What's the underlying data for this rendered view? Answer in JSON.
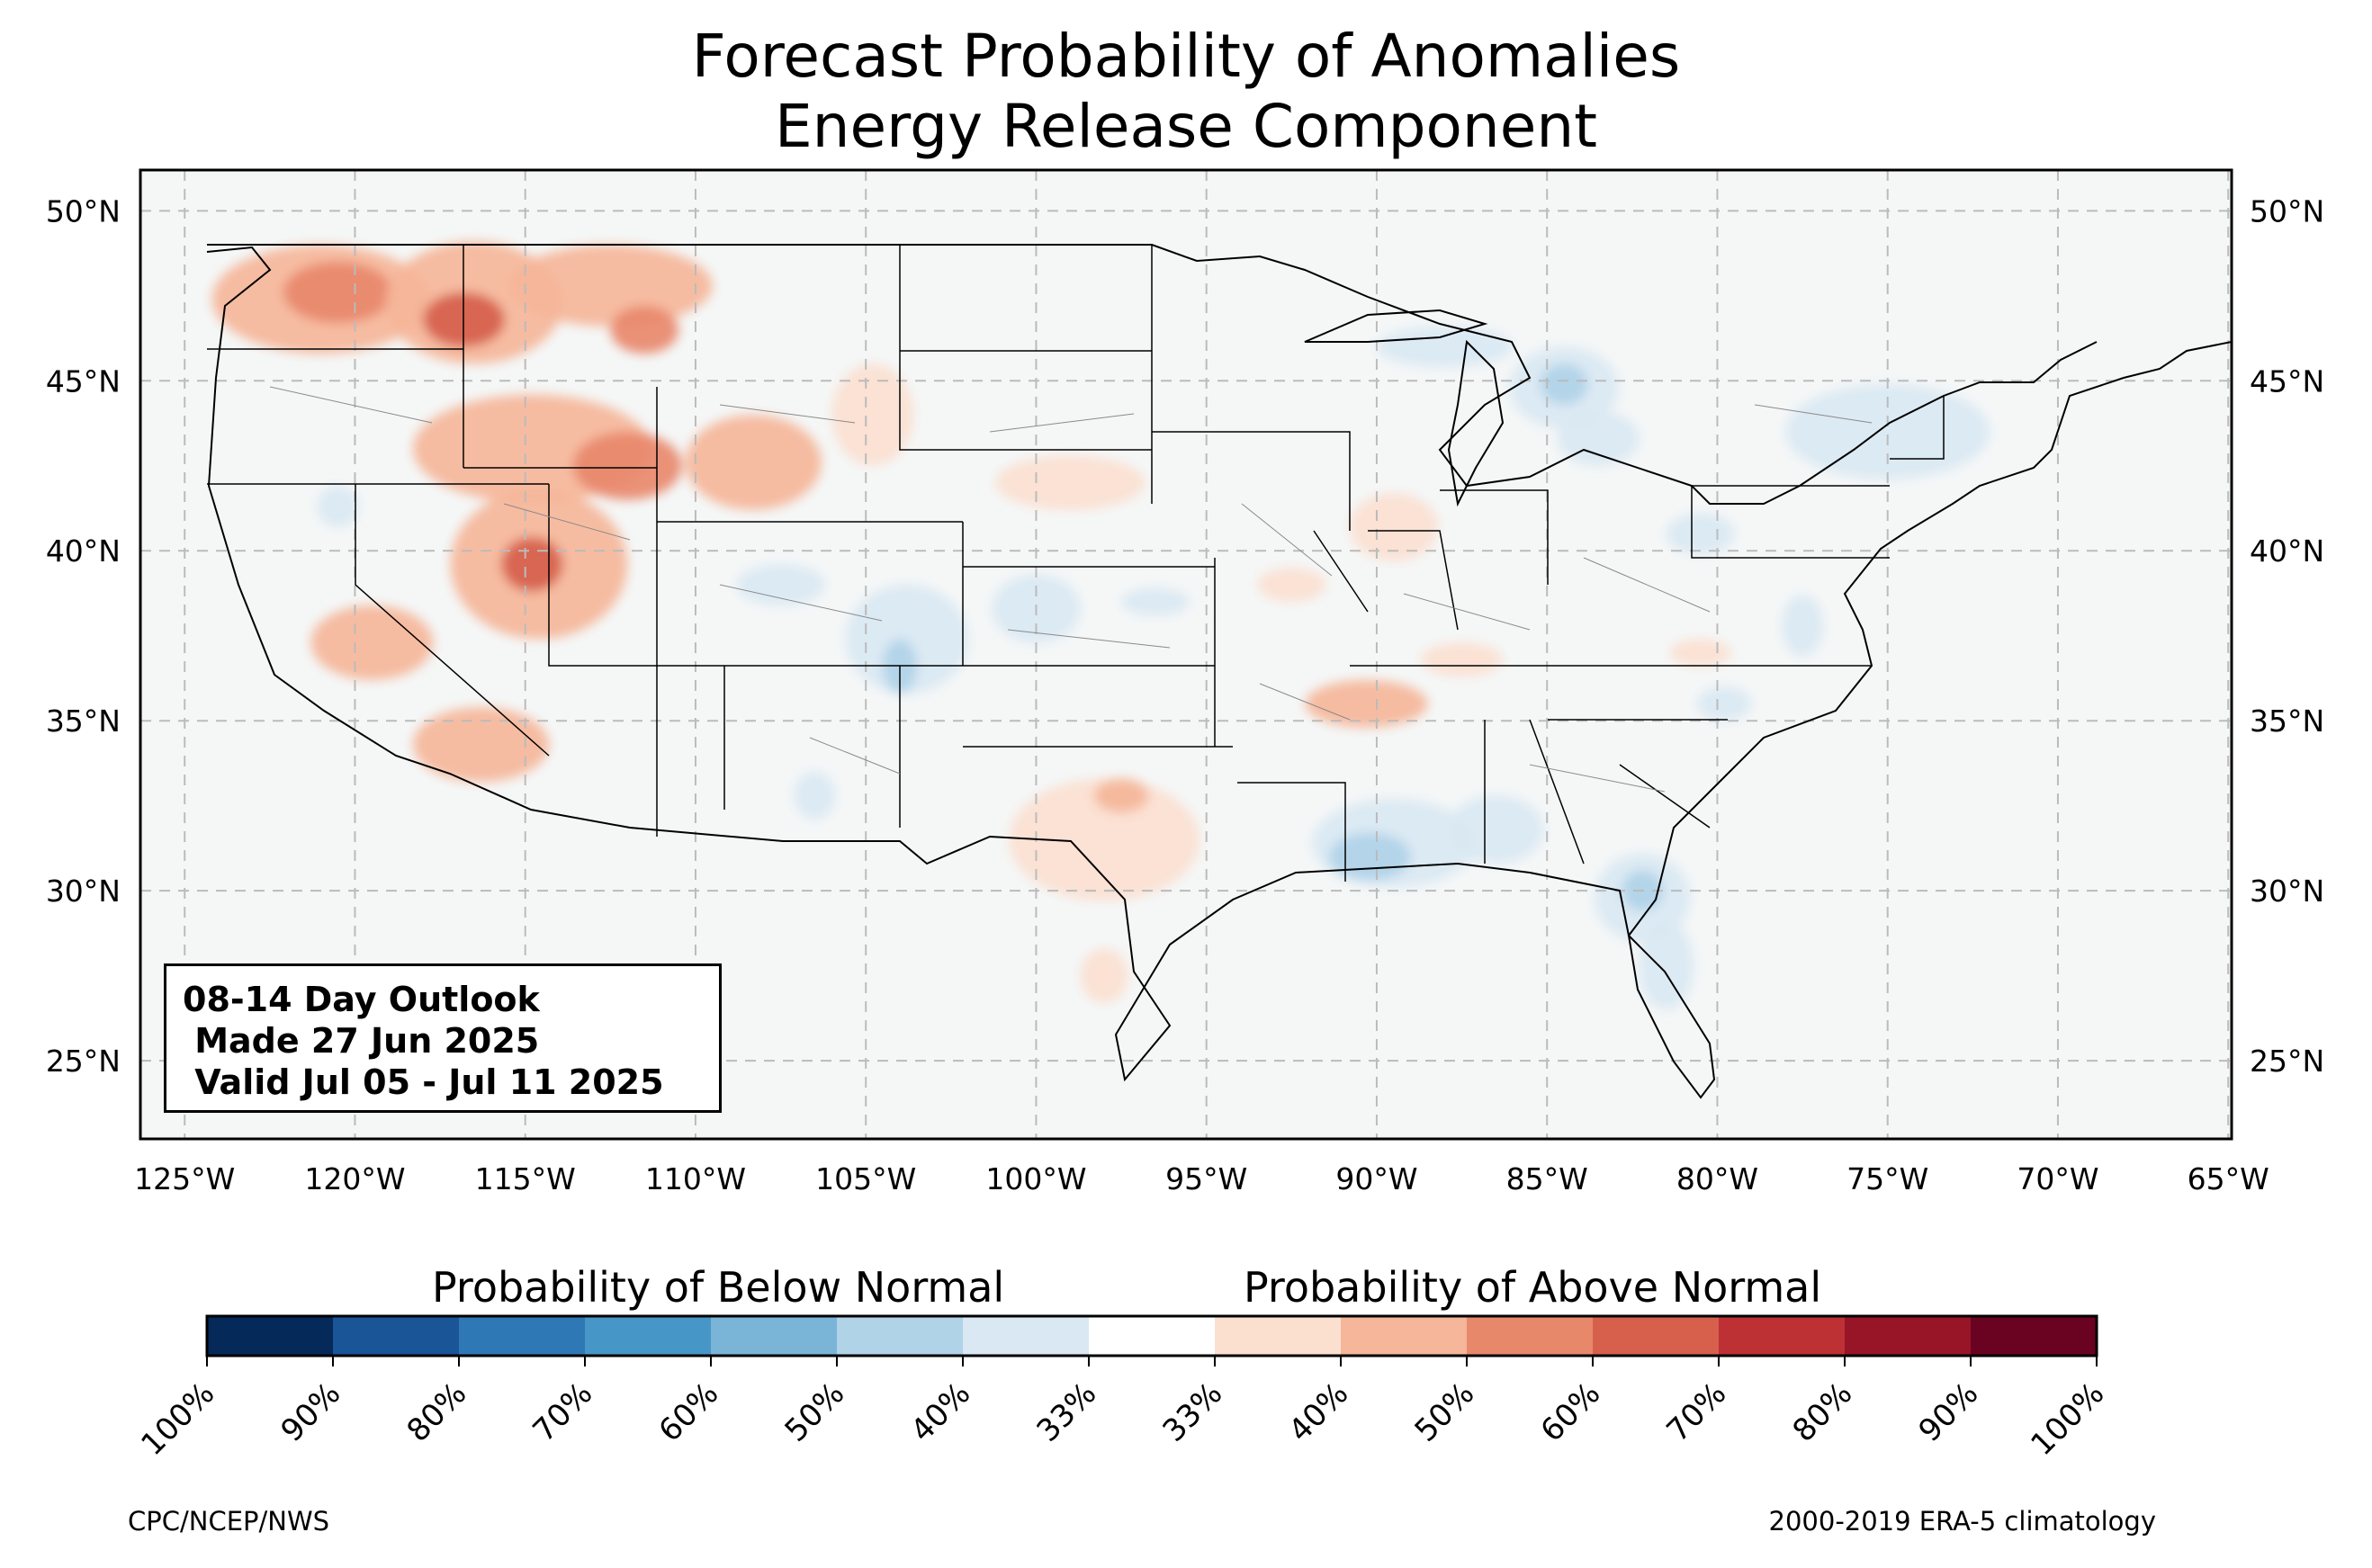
{
  "title": {
    "line1": "Forecast Probability of Anomalies",
    "line2": "Energy Release Component"
  },
  "map": {
    "extent": {
      "lon": [
        -126.3,
        -64.9
      ],
      "lat": [
        22.7,
        51.2
      ]
    },
    "lon_ticks": [
      {
        "value": -125,
        "label": "125°W"
      },
      {
        "value": -120,
        "label": "120°W"
      },
      {
        "value": -115,
        "label": "115°W"
      },
      {
        "value": -110,
        "label": "110°W"
      },
      {
        "value": -105,
        "label": "105°W"
      },
      {
        "value": -100,
        "label": "100°W"
      },
      {
        "value": -95,
        "label": "95°W"
      },
      {
        "value": -90,
        "label": "90°W"
      },
      {
        "value": -85,
        "label": "85°W"
      },
      {
        "value": -80,
        "label": "80°W"
      },
      {
        "value": -75,
        "label": "75°W"
      },
      {
        "value": -70,
        "label": "70°W"
      },
      {
        "value": -65,
        "label": "65°W"
      }
    ],
    "lat_ticks": [
      {
        "value": 25,
        "label": "25°N"
      },
      {
        "value": 30,
        "label": "30°N"
      },
      {
        "value": 35,
        "label": "35°N"
      },
      {
        "value": 40,
        "label": "40°N"
      },
      {
        "value": 45,
        "label": "45°N"
      },
      {
        "value": 50,
        "label": "50°N"
      }
    ],
    "grid": true,
    "land_color": "#f5f7f7",
    "anomaly_areas": [
      {
        "cat": "above",
        "level": 2,
        "lon": -121.0,
        "lat": 47.4,
        "rx": 3.2,
        "ry": 1.6
      },
      {
        "cat": "above",
        "level": 3,
        "lon": -120.5,
        "lat": 47.6,
        "rx": 1.6,
        "ry": 0.9
      },
      {
        "cat": "above",
        "level": 2,
        "lon": -116.5,
        "lat": 47.3,
        "rx": 2.6,
        "ry": 1.8
      },
      {
        "cat": "above",
        "level": 4,
        "lon": -116.8,
        "lat": 46.8,
        "rx": 1.2,
        "ry": 0.8
      },
      {
        "cat": "above",
        "level": 2,
        "lon": -112.5,
        "lat": 47.8,
        "rx": 3.0,
        "ry": 1.2
      },
      {
        "cat": "above",
        "level": 3,
        "lon": -111.5,
        "lat": 46.5,
        "rx": 1.0,
        "ry": 0.7
      },
      {
        "cat": "above",
        "level": 2,
        "lon": -114.8,
        "lat": 43.0,
        "rx": 3.5,
        "ry": 1.6
      },
      {
        "cat": "above",
        "level": 3,
        "lon": -112.0,
        "lat": 42.5,
        "rx": 1.6,
        "ry": 1.0
      },
      {
        "cat": "above",
        "level": 2,
        "lon": -114.6,
        "lat": 39.6,
        "rx": 2.6,
        "ry": 2.2
      },
      {
        "cat": "above",
        "level": 4,
        "lon": -114.8,
        "lat": 39.6,
        "rx": 0.9,
        "ry": 0.8
      },
      {
        "cat": "above",
        "level": 2,
        "lon": -108.3,
        "lat": 42.6,
        "rx": 2.0,
        "ry": 1.4
      },
      {
        "cat": "above",
        "level": 1,
        "lon": -104.8,
        "lat": 44.0,
        "rx": 1.2,
        "ry": 1.5
      },
      {
        "cat": "above",
        "level": 2,
        "lon": -119.5,
        "lat": 37.3,
        "rx": 1.8,
        "ry": 1.1
      },
      {
        "cat": "above",
        "level": 2,
        "lon": -116.3,
        "lat": 34.3,
        "rx": 2.0,
        "ry": 1.1
      },
      {
        "cat": "above",
        "level": 1,
        "lon": -99.0,
        "lat": 42.0,
        "rx": 2.2,
        "ry": 0.8
      },
      {
        "cat": "above",
        "level": 1,
        "lon": -89.5,
        "lat": 40.7,
        "rx": 1.3,
        "ry": 1.0
      },
      {
        "cat": "above",
        "level": 1,
        "lon": -92.5,
        "lat": 39.0,
        "rx": 1.0,
        "ry": 0.5
      },
      {
        "cat": "above",
        "level": 2,
        "lon": -90.3,
        "lat": 35.5,
        "rx": 1.8,
        "ry": 0.7
      },
      {
        "cat": "above",
        "level": 1,
        "lon": -87.5,
        "lat": 36.8,
        "rx": 1.2,
        "ry": 0.5
      },
      {
        "cat": "above",
        "level": 1,
        "lon": -98.0,
        "lat": 31.5,
        "rx": 2.8,
        "ry": 1.8
      },
      {
        "cat": "above",
        "level": 2,
        "lon": -97.5,
        "lat": 32.8,
        "rx": 0.8,
        "ry": 0.5
      },
      {
        "cat": "above",
        "level": 1,
        "lon": -98.0,
        "lat": 27.5,
        "rx": 0.7,
        "ry": 0.8
      },
      {
        "cat": "above",
        "level": 1,
        "lon": -80.5,
        "lat": 37.0,
        "rx": 0.9,
        "ry": 0.4
      },
      {
        "cat": "below",
        "level": 1,
        "lon": -84.5,
        "lat": 44.8,
        "rx": 1.6,
        "ry": 1.2
      },
      {
        "cat": "below",
        "level": 2,
        "lon": -84.5,
        "lat": 44.9,
        "rx": 0.7,
        "ry": 0.6
      },
      {
        "cat": "below",
        "level": 1,
        "lon": -83.5,
        "lat": 43.3,
        "rx": 1.2,
        "ry": 0.8
      },
      {
        "cat": "below",
        "level": 1,
        "lon": -88.0,
        "lat": 46.0,
        "rx": 2.0,
        "ry": 0.6
      },
      {
        "cat": "below",
        "level": 1,
        "lon": -75.0,
        "lat": 43.5,
        "rx": 3.0,
        "ry": 1.4
      },
      {
        "cat": "below",
        "level": 1,
        "lon": -80.5,
        "lat": 40.5,
        "rx": 1.0,
        "ry": 0.6
      },
      {
        "cat": "below",
        "level": 1,
        "lon": -77.5,
        "lat": 37.8,
        "rx": 0.6,
        "ry": 0.9
      },
      {
        "cat": "below",
        "level": 1,
        "lon": -100.0,
        "lat": 38.3,
        "rx": 1.3,
        "ry": 1.0
      },
      {
        "cat": "below",
        "level": 1,
        "lon": -103.8,
        "lat": 37.4,
        "rx": 1.8,
        "ry": 1.6
      },
      {
        "cat": "below",
        "level": 2,
        "lon": -104.0,
        "lat": 36.6,
        "rx": 0.5,
        "ry": 0.8
      },
      {
        "cat": "below",
        "level": 1,
        "lon": -96.5,
        "lat": 38.5,
        "rx": 1.0,
        "ry": 0.4
      },
      {
        "cat": "below",
        "level": 1,
        "lon": -107.5,
        "lat": 39.0,
        "rx": 1.3,
        "ry": 0.6
      },
      {
        "cat": "below",
        "level": 1,
        "lon": -120.5,
        "lat": 41.3,
        "rx": 0.6,
        "ry": 0.6
      },
      {
        "cat": "below",
        "level": 1,
        "lon": -106.5,
        "lat": 32.8,
        "rx": 0.6,
        "ry": 0.7
      },
      {
        "cat": "below",
        "level": 1,
        "lon": -89.5,
        "lat": 31.4,
        "rx": 2.4,
        "ry": 1.3
      },
      {
        "cat": "below",
        "level": 2,
        "lon": -90.2,
        "lat": 31.0,
        "rx": 1.2,
        "ry": 0.7
      },
      {
        "cat": "below",
        "level": 1,
        "lon": -86.5,
        "lat": 31.8,
        "rx": 1.4,
        "ry": 1.0
      },
      {
        "cat": "below",
        "level": 1,
        "lon": -82.2,
        "lat": 29.8,
        "rx": 1.4,
        "ry": 1.3
      },
      {
        "cat": "below",
        "level": 2,
        "lon": -82.2,
        "lat": 30.0,
        "rx": 0.6,
        "ry": 0.6
      },
      {
        "cat": "below",
        "level": 1,
        "lon": -81.5,
        "lat": 27.8,
        "rx": 0.8,
        "ry": 1.3
      },
      {
        "cat": "below",
        "level": 1,
        "lon": -79.8,
        "lat": 35.5,
        "rx": 0.8,
        "ry": 0.5
      }
    ]
  },
  "outlook": {
    "line1": "08-14 Day Outlook",
    "line2": " Made 27 Jun 2025",
    "line3": " Valid Jul 05 - Jul 11 2025"
  },
  "colorbar": {
    "below_label": "Probability of Below Normal",
    "above_label": "Probability of Above Normal",
    "colors": [
      "#052959",
      "#1a5598",
      "#2f78b6",
      "#4796c8",
      "#7ab5d8",
      "#b0d3e8",
      "#d9e8f2",
      "#ffffff",
      "#fbe0d0",
      "#f5b699",
      "#e8886b",
      "#d6604c",
      "#bd3135",
      "#981527",
      "#6a0221"
    ],
    "tick_labels": [
      "100%",
      "90%",
      "80%",
      "70%",
      "60%",
      "50%",
      "40%",
      "33%",
      "33%",
      "40%",
      "50%",
      "60%",
      "70%",
      "80%",
      "90%",
      "100%"
    ]
  },
  "footer": {
    "left": "CPC/NCEP/NWS",
    "right": "2000-2019 ERA-5 climatology"
  }
}
